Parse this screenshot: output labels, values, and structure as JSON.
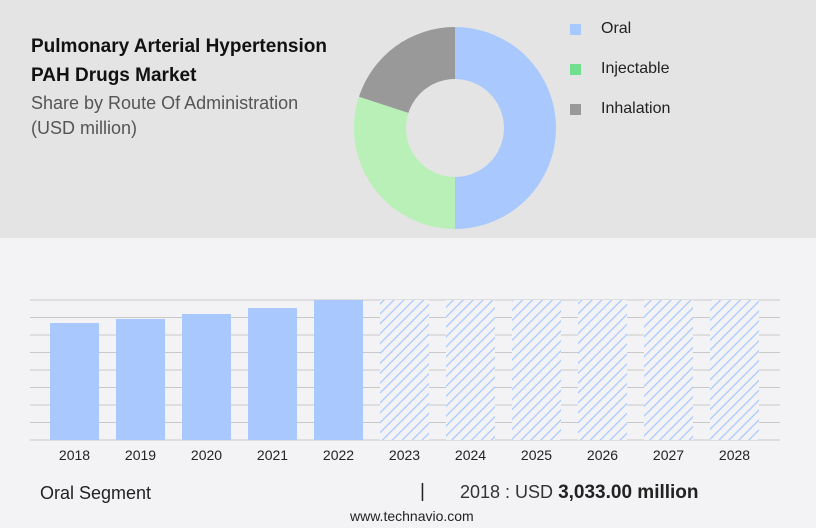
{
  "header": {
    "title_line1": "Pulmonary Arterial Hypertension",
    "title_line2": "PAH Drugs Market",
    "subtitle_line1": "Share by Route Of Administration",
    "subtitle_line2": "(USD million)"
  },
  "chart_data": [
    {
      "type": "pie",
      "variant": "donut",
      "segments": [
        {
          "name": "Oral",
          "share": 50,
          "color": "#a8c8fe"
        },
        {
          "name": "Injectable",
          "share": 30,
          "color": "#b8f0b8",
          "legend_color": "#70e090"
        },
        {
          "name": "Inhalation",
          "share": 20,
          "color": "#999999"
        }
      ],
      "legend_placement": "right"
    },
    {
      "type": "bar",
      "categories": [
        "2018",
        "2019",
        "2020",
        "2021",
        "2022",
        "2023",
        "2024",
        "2025",
        "2026",
        "2027",
        "2028"
      ],
      "values": [
        3033,
        3137,
        3266,
        3421,
        3629,
        null,
        null,
        null,
        null,
        null,
        null
      ],
      "forecast": [
        false,
        false,
        false,
        false,
        false,
        true,
        true,
        true,
        true,
        true,
        true
      ],
      "color": "#a8c8fe",
      "grid": true,
      "ylim": [
        0,
        3629
      ]
    }
  ],
  "footer": {
    "segment": "Oral Segment",
    "separator": "|",
    "year_label": "2018 : USD ",
    "value": "3,033.00 million",
    "url": "www.technavio.com"
  }
}
